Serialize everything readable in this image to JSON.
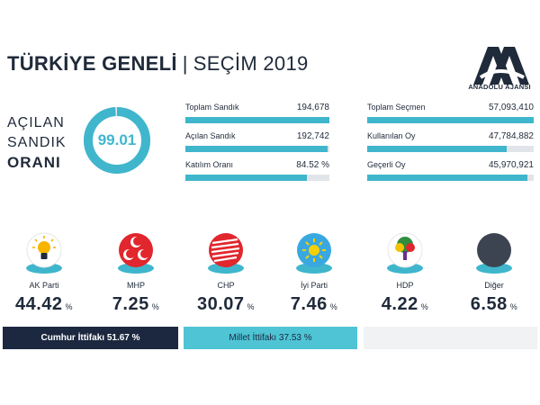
{
  "header": {
    "title_bold": "TÜRKİYE GENELİ",
    "separator": "|",
    "title_light": "SEÇİM 2019",
    "logo_text": "ANADOLU AJANSI"
  },
  "open_ratio": {
    "label_lines": [
      "AÇILAN",
      "SANDIK",
      "ORANI"
    ],
    "value": "99.01",
    "percent": 99.01
  },
  "stats": [
    {
      "label": "Toplam Sandık",
      "value": "194,678",
      "fill": 1.0
    },
    {
      "label": "Açılan Sandık",
      "value": "192,742",
      "fill": 0.99
    },
    {
      "label": "Katılım Oranı",
      "value": "84.52 %",
      "fill": 0.8452
    },
    {
      "label": "Toplam Seçmen",
      "value": "57,093,410",
      "fill": 1.0
    },
    {
      "label": "Kullanılan Oy",
      "value": "47,784,882",
      "fill": 0.837
    },
    {
      "label": "Geçerli Oy",
      "value": "45,970,921",
      "fill": 0.962
    }
  ],
  "parties": [
    {
      "name": "AK Parti",
      "pct": "44.42",
      "sym": "%",
      "icon": "lightbulb-icon",
      "color": "#f7b500"
    },
    {
      "name": "MHP",
      "pct": "7.25",
      "sym": "%",
      "icon": "three-crescents-icon",
      "color": "#e1262d"
    },
    {
      "name": "CHP",
      "pct": "30.07",
      "sym": "%",
      "icon": "six-arrows-icon",
      "color": "#e1262d"
    },
    {
      "name": "İyi Parti",
      "pct": "7.46",
      "sym": "%",
      "icon": "sun-icon",
      "color": "#3aa8e0"
    },
    {
      "name": "HDP",
      "pct": "4.22",
      "sym": "%",
      "icon": "tree-icon",
      "color": "#6a2e8c"
    },
    {
      "name": "Diğer",
      "pct": "6.58",
      "sym": "%",
      "icon": "circle-icon",
      "color": "#3d4451"
    }
  ],
  "alliances": {
    "cumhur": "Cumhur İttifakı 51.67 %",
    "millet": "Millet İttifakı 37.53 %"
  },
  "colors": {
    "accent": "#3fb6cc",
    "navy": "#1c2840",
    "bar_bg": "#e1e5e9"
  }
}
